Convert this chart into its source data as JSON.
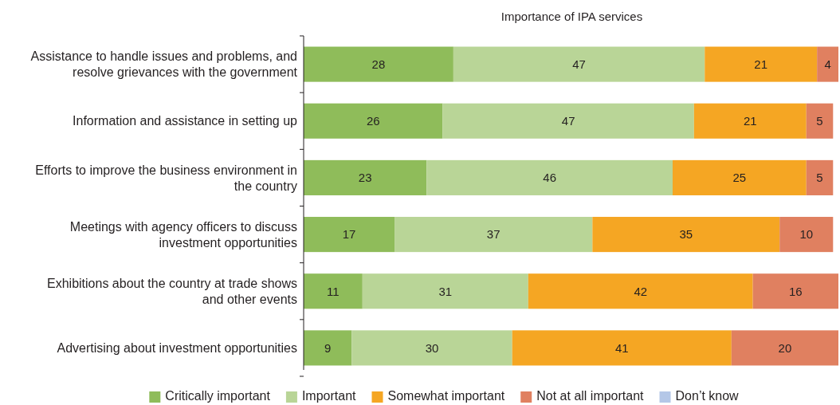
{
  "chart_data": {
    "type": "bar",
    "orientation": "horizontal",
    "stacked": true,
    "title": "Importance of IPA services",
    "categories": [
      "Assistance to handle issues and problems, and resolve grievances with the government",
      "Information and assistance in setting up",
      "Efforts to improve the business environment in the country",
      "Meetings with agency officers to discuss investment opportunities",
      "Exhibitions about the country at trade shows and other events",
      "Advertising about investment opportunities"
    ],
    "series": [
      {
        "name": "Critically important",
        "color": "#8fbc5a",
        "values": [
          28,
          26,
          23,
          17,
          11,
          9
        ]
      },
      {
        "name": "Important",
        "color": "#b9d597",
        "values": [
          47,
          47,
          46,
          37,
          31,
          30
        ]
      },
      {
        "name": "Somewhat important",
        "color": "#f5a623",
        "values": [
          21,
          21,
          25,
          35,
          42,
          41
        ]
      },
      {
        "name": "Not at all important",
        "color": "#e08060",
        "values": [
          4,
          5,
          5,
          10,
          16,
          20
        ]
      },
      {
        "name": "Don’t know",
        "color": "#b4c7e7",
        "values": [
          null,
          null,
          null,
          null,
          null,
          null
        ]
      }
    ],
    "xlim": [
      0,
      100
    ],
    "tick_labels": "y",
    "data_labels": true,
    "legend": "bottom"
  }
}
